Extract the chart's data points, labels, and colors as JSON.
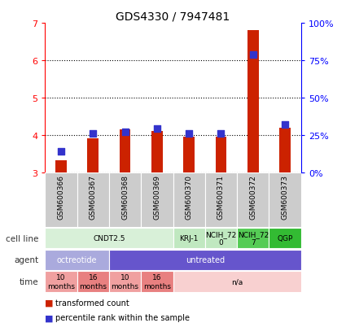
{
  "title": "GDS4330 / 7947481",
  "samples": [
    "GSM600366",
    "GSM600367",
    "GSM600368",
    "GSM600369",
    "GSM600370",
    "GSM600371",
    "GSM600372",
    "GSM600373"
  ],
  "transformed_counts": [
    3.33,
    3.9,
    4.15,
    4.1,
    3.95,
    3.95,
    6.8,
    4.2
  ],
  "percentile_ranks_pct": [
    14,
    26,
    27,
    29,
    26,
    26,
    79,
    32
  ],
  "ylim_left": [
    3.0,
    7.0
  ],
  "yticks_left": [
    3,
    4,
    5,
    6,
    7
  ],
  "bar_color": "#cc2200",
  "dot_color": "#3333cc",
  "bar_bottom": 3.0,
  "bar_width": 0.35,
  "dot_size": 40,
  "cell_line_groups": [
    {
      "label": "CNDT2.5",
      "start": 0,
      "end": 4,
      "color": "#d8f0d8"
    },
    {
      "label": "KRJ-1",
      "start": 4,
      "end": 5,
      "color": "#c0e8c0"
    },
    {
      "label": "NCIH_72\n0",
      "start": 5,
      "end": 6,
      "color": "#c0e8c0"
    },
    {
      "label": "NCIH_72\n7",
      "start": 6,
      "end": 7,
      "color": "#55cc55"
    },
    {
      "label": "QGP",
      "start": 7,
      "end": 8,
      "color": "#33bb33"
    }
  ],
  "agent_groups": [
    {
      "label": "octreotide",
      "start": 0,
      "end": 2,
      "color": "#aaaadd"
    },
    {
      "label": "untreated",
      "start": 2,
      "end": 8,
      "color": "#6655cc"
    }
  ],
  "time_groups": [
    {
      "label": "10\nmonths",
      "start": 0,
      "end": 1,
      "color": "#f0a0a0"
    },
    {
      "label": "16\nmonths",
      "start": 1,
      "end": 2,
      "color": "#e88080"
    },
    {
      "label": "10\nmonths",
      "start": 2,
      "end": 3,
      "color": "#f0a0a0"
    },
    {
      "label": "16\nmonths",
      "start": 3,
      "end": 4,
      "color": "#e88080"
    },
    {
      "label": "n/a",
      "start": 4,
      "end": 8,
      "color": "#f8d0d0"
    }
  ],
  "legend_bar_color": "#cc2200",
  "legend_dot_color": "#3333cc",
  "legend_bar_label": "transformed count",
  "legend_dot_label": "percentile rank within the sample"
}
